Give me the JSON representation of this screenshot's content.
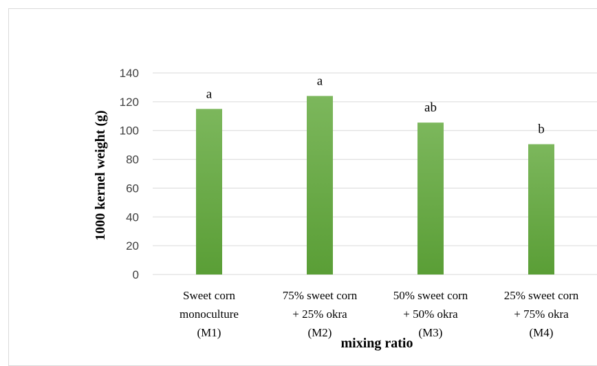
{
  "chart_data": {
    "type": "bar",
    "categories": [
      [
        "Sweet corn",
        "monoculture",
        "(M1)"
      ],
      [
        "75% sweet corn",
        "+ 25% okra",
        "(M2)"
      ],
      [
        "50% sweet corn",
        "+ 50% okra",
        "(M3)"
      ],
      [
        "25% sweet corn",
        "+ 75% okra",
        "(M4)"
      ]
    ],
    "values": [
      115,
      124,
      105.5,
      90.5
    ],
    "data_labels": [
      "a",
      "a",
      "ab",
      "b"
    ],
    "xlabel": "mixing ratio",
    "ylabel": "1000 kernel weight (g)",
    "ylim": [
      0,
      140
    ],
    "yticks": [
      0,
      20,
      40,
      60,
      80,
      100,
      120,
      140
    ],
    "grid": true,
    "legend": "none",
    "bar_color_top": "#7cb75c",
    "bar_color_bottom": "#5a9e36",
    "grid_color": "#d9d9d9"
  }
}
